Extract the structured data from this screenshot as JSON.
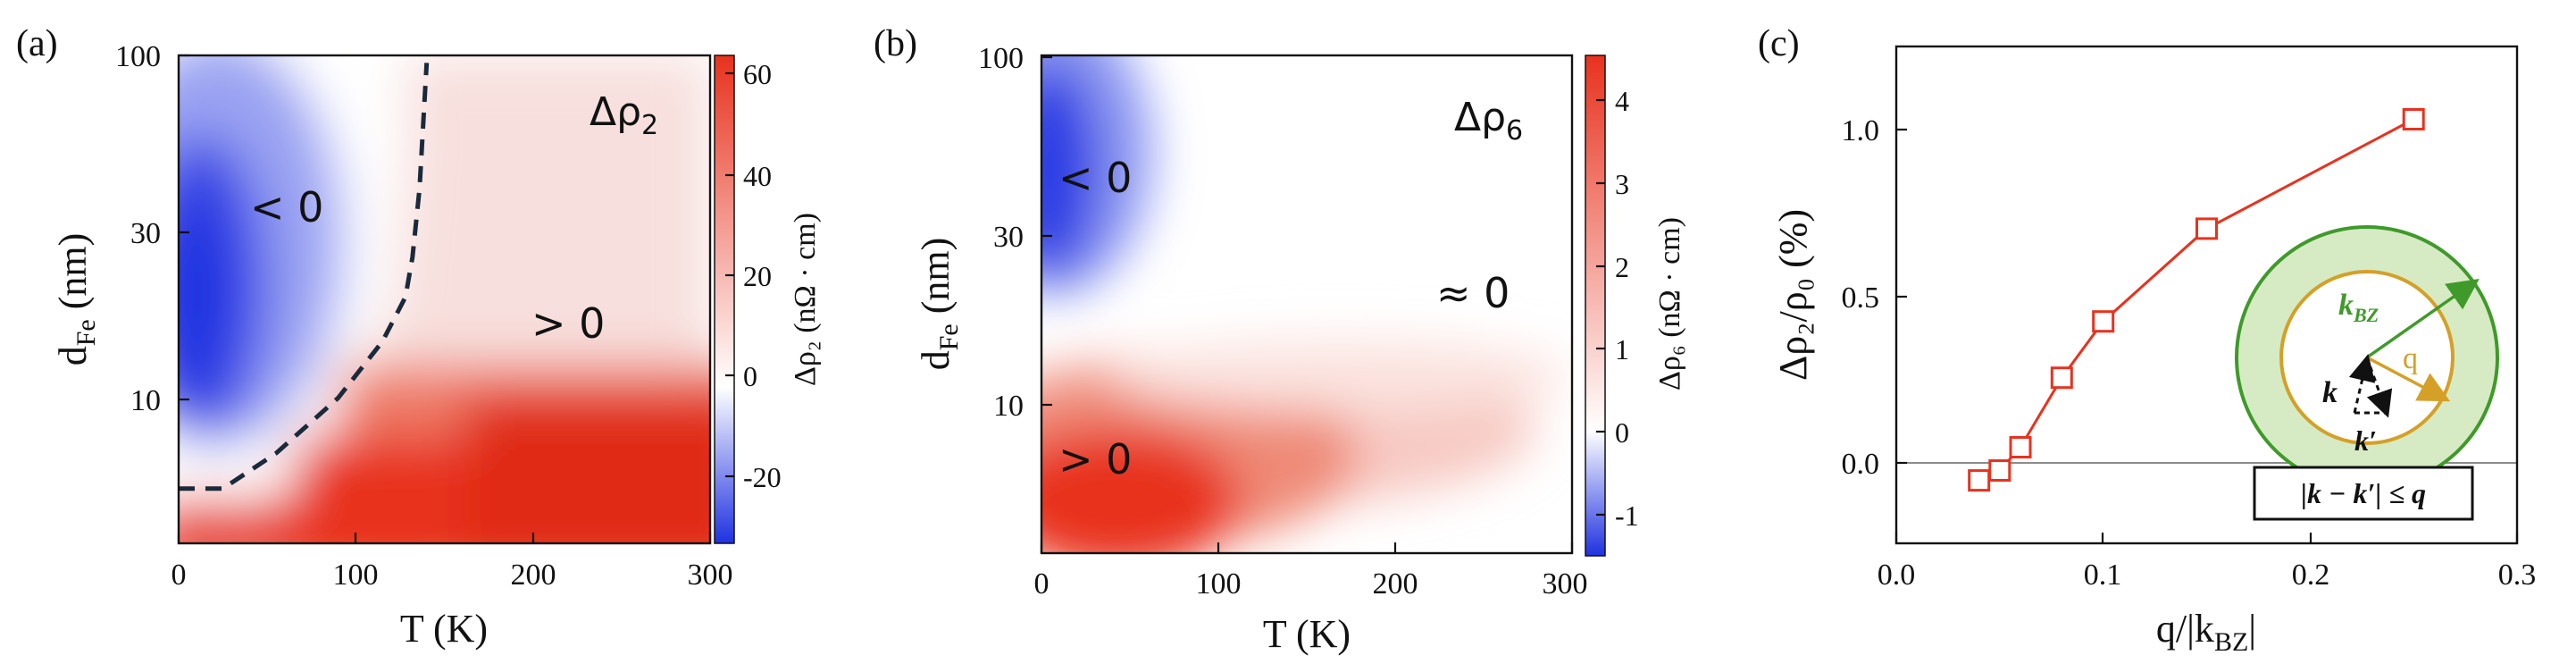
{
  "panels": {
    "a": {
      "label": "(a)",
      "xlabel": "T (K)",
      "ylabel_main": "d",
      "ylabel_sub": "Fe",
      "ylabel_unit": " (nm)",
      "x_ticks": [
        "0",
        "100",
        "200",
        "300"
      ],
      "y_ticks": [
        "10",
        "30",
        "100"
      ],
      "colorbar_title": "Δρ₂ (nΩ · cm)",
      "colorbar_ticks": [
        "60",
        "40",
        "20",
        "0",
        "-20"
      ],
      "map_title": "Δρ",
      "map_title_sub": "2",
      "annotations": [
        "< 0",
        "> 0"
      ]
    },
    "b": {
      "label": "(b)",
      "xlabel": "T (K)",
      "ylabel_main": "d",
      "ylabel_sub": "Fe",
      "ylabel_unit": " (nm)",
      "x_ticks": [
        "0",
        "100",
        "200",
        "300"
      ],
      "y_ticks": [
        "10",
        "30",
        "100"
      ],
      "colorbar_title": "Δρ₆ (nΩ · cm)",
      "colorbar_ticks": [
        "4",
        "3",
        "2",
        "1",
        "0",
        "-1"
      ],
      "map_title": "Δρ",
      "map_title_sub": "6",
      "annotations": [
        "< 0",
        "≈ 0",
        "> 0"
      ]
    },
    "c": {
      "label": "(c)",
      "xlabel_main": "q/|k",
      "xlabel_sub": "BZ",
      "xlabel_end": "|",
      "ylabel": "Δρ₂/ρ₀ (%)",
      "x_ticks": [
        "0.0",
        "0.1",
        "0.2",
        "0.3"
      ],
      "y_ticks": [
        "0.0",
        "0.5",
        "1.0"
      ],
      "inset": {
        "kbz_label": "k",
        "kbz_sub": "BZ",
        "q_label": "q",
        "k_label": "k",
        "kprime_label": "k′",
        "condition": "|k − k′| ≤ q"
      }
    }
  },
  "colors": {
    "positive": "#e8321e",
    "negative": "#1f32e0",
    "line": "#e8321e",
    "inset_outer": "#3f9a2a",
    "inset_fill": "#d6ebc4",
    "inset_inner": "#d4a027"
  },
  "chart_data": [
    {
      "type": "heatmap",
      "panel": "a",
      "title": "Δρ2",
      "xlabel": "T (K)",
      "ylabel": "dFe (nm)",
      "xlim": [
        0,
        300
      ],
      "ylim": [
        3.5,
        100
      ],
      "y_scale": "log",
      "colorbar_range": [
        -30,
        64
      ],
      "colorbar_label": "Δρ2 (nΩ · cm)",
      "boundary_contour": [
        [
          0,
          5.1
        ],
        [
          25,
          5.1
        ],
        [
          55,
          6.5
        ],
        [
          90,
          9.5
        ],
        [
          115,
          14
        ],
        [
          128,
          19
        ],
        [
          132,
          25
        ],
        [
          136,
          40
        ],
        [
          140,
          95
        ]
      ],
      "regions": [
        {
          "label": "< 0",
          "T_center": 25,
          "d_center": 25,
          "peak_value": -30
        },
        {
          "label": "> 0",
          "T_center": 260,
          "d_center": 5,
          "peak_value": 64
        }
      ]
    },
    {
      "type": "heatmap",
      "panel": "b",
      "title": "Δρ6",
      "xlabel": "T (K)",
      "ylabel": "dFe (nm)",
      "xlim": [
        0,
        300
      ],
      "ylim": [
        3.5,
        100
      ],
      "y_scale": "log",
      "colorbar_range": [
        -1.5,
        4.5
      ],
      "colorbar_label": "Δρ6 (nΩ · cm)",
      "regions": [
        {
          "label": "< 0",
          "T_center": 5,
          "d_center": 40,
          "peak_value": -1.5
        },
        {
          "label": "≈ 0",
          "T_center": 250,
          "d_center": 25,
          "peak_value": 0
        },
        {
          "label": "> 0",
          "T_center": 40,
          "d_center": 6,
          "peak_value": 4.5
        }
      ]
    },
    {
      "type": "line",
      "panel": "c",
      "xlabel": "q/|kBZ|",
      "ylabel": "Δρ2/ρ0 (%)",
      "xlim": [
        0,
        0.3
      ],
      "ylim": [
        -0.25,
        1.25
      ],
      "grid": false,
      "reference_line_y": 0,
      "series": [
        {
          "x": [
            0.04,
            0.05,
            0.06,
            0.08,
            0.1,
            0.15,
            0.25
          ],
          "y": [
            -0.06,
            -0.03,
            0.04,
            0.25,
            0.42,
            0.7,
            1.03
          ]
        }
      ]
    }
  ]
}
